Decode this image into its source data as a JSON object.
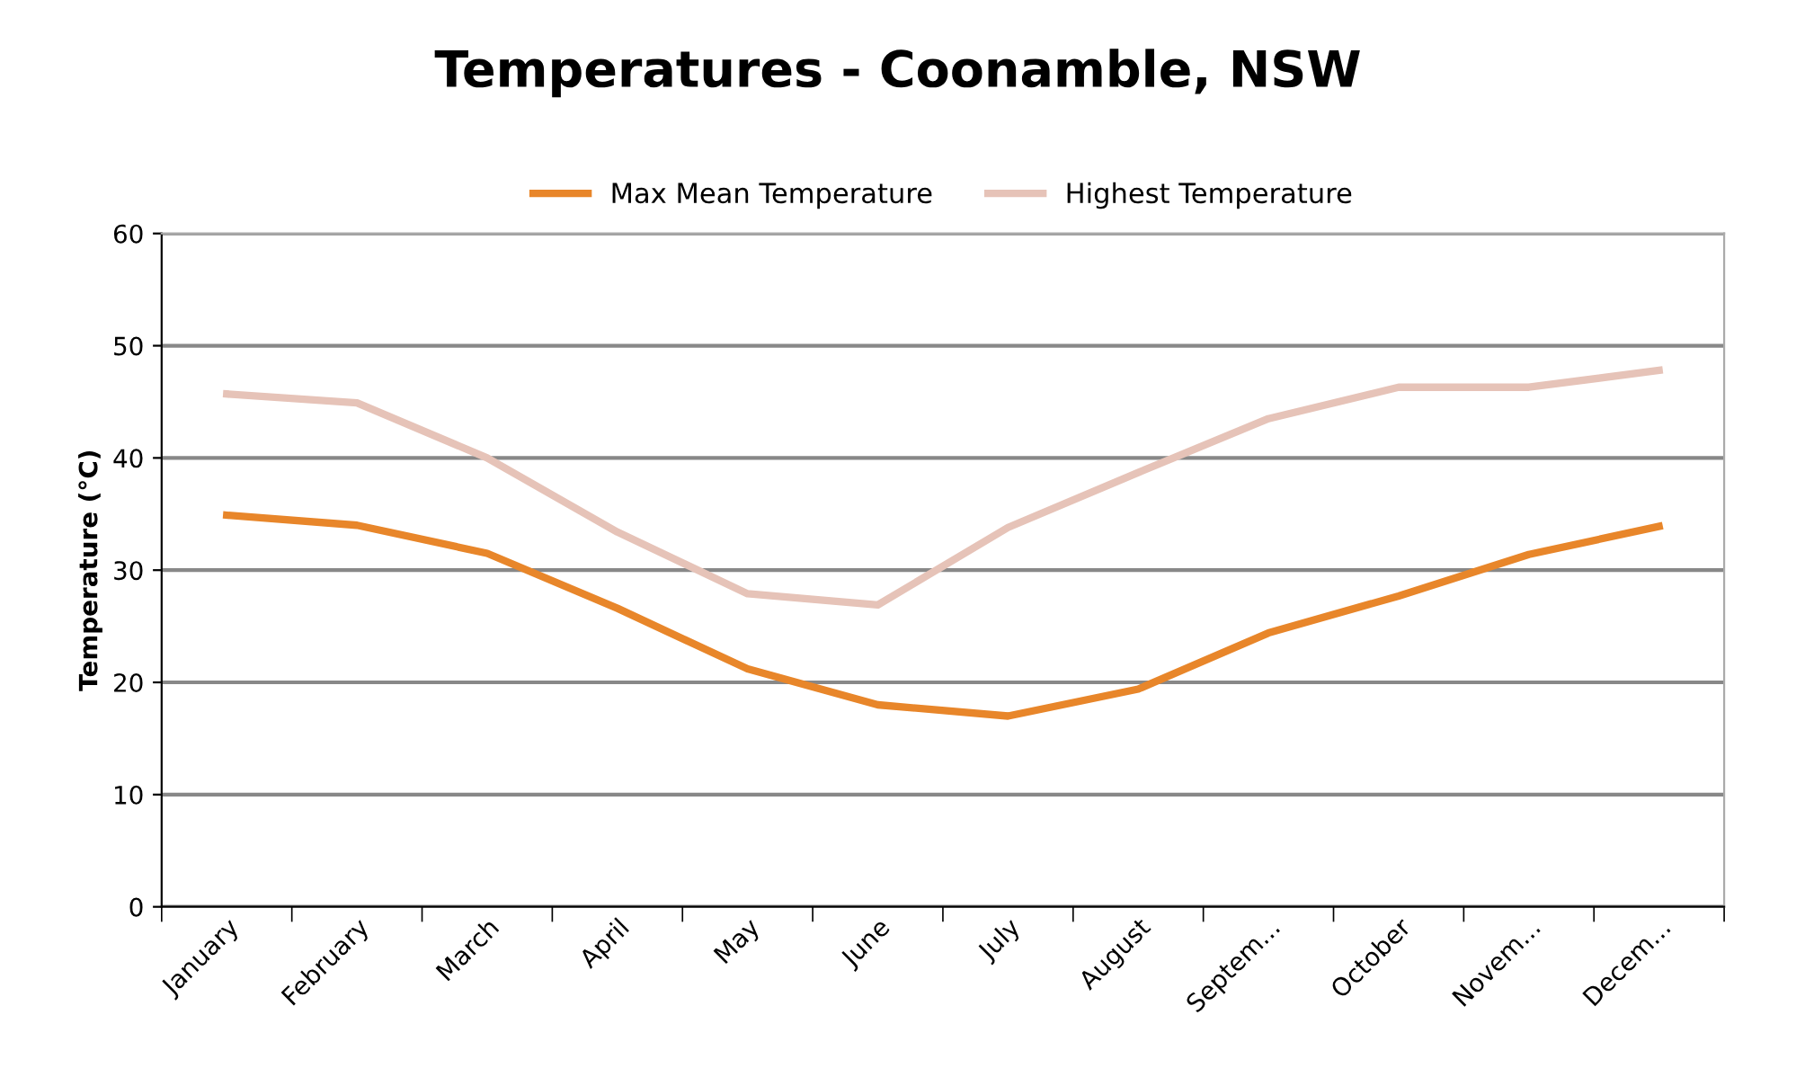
{
  "chart_data": {
    "type": "line",
    "title": "Temperatures - Coonamble, NSW",
    "ylabel": "Temperature (°C)",
    "categories": [
      "January",
      "February",
      "March",
      "April",
      "May",
      "June",
      "July",
      "August",
      "Septem...",
      "October",
      "Novem...",
      "Decem..."
    ],
    "series": [
      {
        "name": "Max Mean Temperature",
        "color": "#e8862a",
        "values": [
          34.9,
          34,
          31.5,
          26.6,
          21.2,
          18,
          17,
          19.4,
          24.4,
          27.7,
          31.4,
          33.9
        ]
      },
      {
        "name": "Highest Temperature",
        "color": "#e6c3b8",
        "values": [
          45.7,
          44.9,
          40,
          33.4,
          27.9,
          26.9,
          33.8,
          38.7,
          43.5,
          46.3,
          46.3,
          47.8
        ]
      }
    ],
    "ylim": [
      0,
      60
    ],
    "yticks": [
      0,
      10,
      20,
      30,
      40,
      50,
      60
    ],
    "grid": "y",
    "legend": "top",
    "marker": "none",
    "line_style": "solid"
  }
}
